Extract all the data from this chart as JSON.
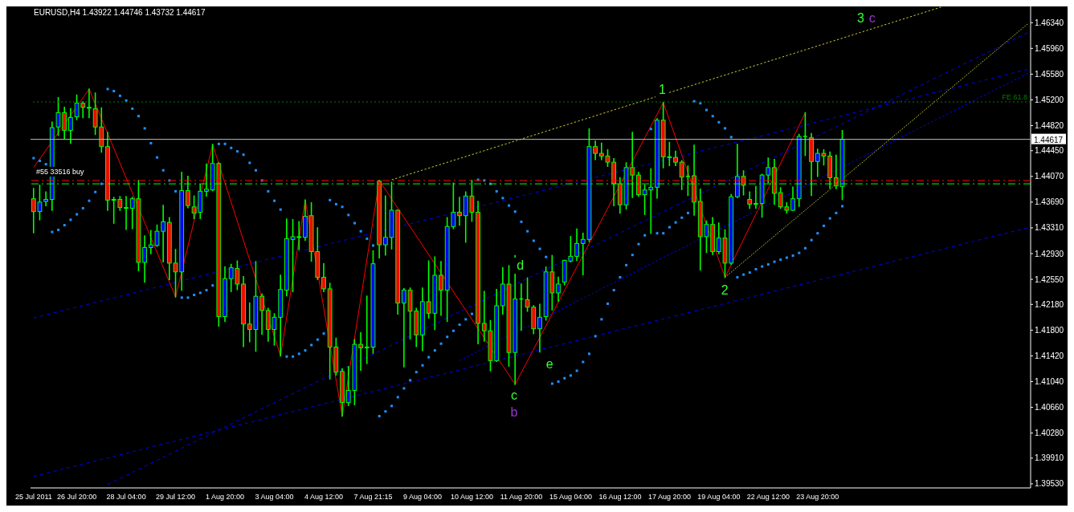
{
  "chart_data": {
    "type": "candlestick",
    "title": "EURUSD,H4 1.43922 1.44746 1.43732 1.44617",
    "categories": [
      "25 Jul 2011",
      null,
      null,
      null,
      null,
      null,
      null,
      "26 Jul 20:00",
      null,
      null,
      null,
      null,
      null,
      null,
      null,
      "28 Jul 04:00",
      null,
      null,
      null,
      null,
      null,
      null,
      null,
      "29 Jul 12:00",
      null,
      null,
      null,
      null,
      null,
      null,
      null,
      "1 Aug 20:00",
      null,
      null,
      null,
      null,
      null,
      null,
      null,
      "3 Aug 04:00",
      null,
      null,
      null,
      null,
      null,
      null,
      null,
      "4 Aug 12:00",
      null,
      null,
      null,
      null,
      null,
      null,
      null,
      "7 Aug 21:15",
      null,
      null,
      null,
      null,
      null,
      null,
      null,
      "9 Aug 04:00",
      null,
      null,
      null,
      null,
      null,
      null,
      null,
      "10 Aug 12:00",
      null,
      null,
      null,
      null,
      null,
      null,
      null,
      "11 Aug 20:00",
      null,
      null,
      null,
      null,
      null,
      null,
      null,
      "15 Aug 04:00",
      null,
      null,
      null,
      null,
      null,
      null,
      null,
      "16 Aug 12:00",
      null,
      null,
      null,
      null,
      null,
      null,
      null,
      "17 Aug 20:00",
      null,
      null,
      null,
      null,
      null,
      null,
      null,
      "19 Aug 04:00",
      null,
      null,
      null,
      null,
      null,
      null,
      null,
      "22 Aug 12:00",
      null,
      null,
      null,
      null,
      null,
      null,
      null,
      "23 Aug 20:00",
      null,
      null,
      null,
      null,
      null,
      null,
      null,
      null,
      null,
      null,
      null,
      null,
      null,
      null,
      null,
      null,
      null,
      null,
      null,
      null,
      null,
      null,
      null,
      null,
      null,
      null,
      null,
      null,
      null,
      null,
      null,
      null,
      null,
      null
    ],
    "ohlc": [
      [
        1.4374,
        1.4389,
        1.4324,
        1.4355
      ],
      [
        1.4355,
        1.4394,
        1.4343,
        1.4369
      ],
      [
        1.437,
        1.4384,
        1.4364,
        1.4373
      ],
      [
        1.4373,
        1.4487,
        1.4357,
        1.4479
      ],
      [
        1.448,
        1.4523,
        1.4468,
        1.4501
      ],
      [
        1.4501,
        1.4509,
        1.4463,
        1.4475
      ],
      [
        1.4475,
        1.4507,
        1.4456,
        1.4494
      ],
      [
        1.4495,
        1.4527,
        1.4491,
        1.4515
      ],
      [
        1.4515,
        1.4517,
        1.4494,
        1.4509
      ],
      [
        1.4509,
        1.4536,
        1.4494,
        1.4508
      ],
      [
        1.4507,
        1.453,
        1.4469,
        1.448
      ],
      [
        1.448,
        1.4508,
        1.4443,
        1.4451
      ],
      [
        1.4451,
        1.4472,
        1.4357,
        1.4372
      ],
      [
        1.4373,
        1.4376,
        1.4338,
        1.4372
      ],
      [
        1.4373,
        1.4377,
        1.4357,
        1.4361
      ],
      [
        1.4361,
        1.4377,
        1.4329,
        1.436
      ],
      [
        1.436,
        1.4376,
        1.433,
        1.4374
      ],
      [
        1.4374,
        1.4401,
        1.4268,
        1.428
      ],
      [
        1.428,
        1.4319,
        1.4251,
        1.4302
      ],
      [
        1.4302,
        1.4327,
        1.4293,
        1.4306
      ],
      [
        1.4305,
        1.4335,
        1.4304,
        1.4326
      ],
      [
        1.4326,
        1.4364,
        1.4281,
        1.434
      ],
      [
        1.4339,
        1.4346,
        1.4255,
        1.4279
      ],
      [
        1.4279,
        1.4299,
        1.4229,
        1.4266
      ],
      [
        1.4266,
        1.4413,
        1.4239,
        1.4386
      ],
      [
        1.4386,
        1.4407,
        1.4361,
        1.4364
      ],
      [
        1.4362,
        1.4378,
        1.4345,
        1.4353
      ],
      [
        1.4354,
        1.4395,
        1.4345,
        1.4385
      ],
      [
        1.4385,
        1.4425,
        1.4378,
        1.4388
      ],
      [
        1.4387,
        1.4454,
        1.4386,
        1.4426
      ],
      [
        1.4426,
        1.4427,
        1.4186,
        1.42
      ],
      [
        1.42,
        1.4273,
        1.4193,
        1.4256
      ],
      [
        1.4256,
        1.4277,
        1.4237,
        1.4272
      ],
      [
        1.4271,
        1.4282,
        1.424,
        1.4248
      ],
      [
        1.4248,
        1.4259,
        1.4156,
        1.4189
      ],
      [
        1.4189,
        1.422,
        1.4163,
        1.4181
      ],
      [
        1.4181,
        1.4281,
        1.4149,
        1.423
      ],
      [
        1.423,
        1.4233,
        1.4174,
        1.4209
      ],
      [
        1.4209,
        1.4212,
        1.4164,
        1.4181
      ],
      [
        1.4181,
        1.4204,
        1.4158,
        1.4199
      ],
      [
        1.4199,
        1.4261,
        1.4142,
        1.424
      ],
      [
        1.4239,
        1.4344,
        1.4231,
        1.4315
      ],
      [
        1.4314,
        1.4343,
        1.4237,
        1.4318
      ],
      [
        1.4318,
        1.434,
        1.4299,
        1.4317
      ],
      [
        1.4317,
        1.4372,
        1.4313,
        1.4348
      ],
      [
        1.4349,
        1.4368,
        1.4282,
        1.4296
      ],
      [
        1.4296,
        1.4331,
        1.4255,
        1.4258
      ],
      [
        1.4258,
        1.4278,
        1.4237,
        1.4241
      ],
      [
        1.4241,
        1.4249,
        1.4108,
        1.4155
      ],
      [
        1.4155,
        1.4168,
        1.4114,
        1.4118
      ],
      [
        1.4119,
        1.4123,
        1.4053,
        1.4073
      ],
      [
        1.4073,
        1.4126,
        1.4069,
        1.4091
      ],
      [
        1.4091,
        1.4166,
        1.407,
        1.4159
      ],
      [
        1.4159,
        1.4176,
        1.4121,
        1.4154
      ],
      [
        1.4155,
        1.423,
        1.4131,
        1.4154
      ],
      [
        1.4155,
        1.4297,
        1.4146,
        1.4278
      ],
      [
        1.44,
        1.4401,
        1.4287,
        1.4306
      ],
      [
        1.4306,
        1.4378,
        1.4291,
        1.4317
      ],
      [
        1.4317,
        1.4398,
        1.43,
        1.4357
      ],
      [
        1.4357,
        1.4357,
        1.4204,
        1.422
      ],
      [
        1.422,
        1.4241,
        1.4126,
        1.4239
      ],
      [
        1.4239,
        1.4242,
        1.4167,
        1.4208
      ],
      [
        1.4208,
        1.4212,
        1.4156,
        1.4173
      ],
      [
        1.4173,
        1.4242,
        1.415,
        1.4222
      ],
      [
        1.4222,
        1.4282,
        1.4198,
        1.4205
      ],
      [
        1.4205,
        1.4288,
        1.4181,
        1.4261
      ],
      [
        1.4261,
        1.4281,
        1.4202,
        1.4239
      ],
      [
        1.4239,
        1.4346,
        1.4193,
        1.4333
      ],
      [
        1.4333,
        1.4397,
        1.433,
        1.4354
      ],
      [
        1.4354,
        1.4376,
        1.4335,
        1.4349
      ],
      [
        1.4349,
        1.4384,
        1.431,
        1.4378
      ],
      [
        1.4378,
        1.4401,
        1.4341,
        1.4354
      ],
      [
        1.4354,
        1.437,
        1.416,
        1.419
      ],
      [
        1.419,
        1.4237,
        1.4164,
        1.4179
      ],
      [
        1.4179,
        1.4194,
        1.412,
        1.4135
      ],
      [
        1.4135,
        1.424,
        1.4134,
        1.4216
      ],
      [
        1.4216,
        1.4272,
        1.4204,
        1.4248
      ],
      [
        1.4248,
        1.4275,
        1.4127,
        1.4147
      ],
      [
        1.4147,
        1.429,
        1.41,
        1.4226
      ],
      [
        1.4226,
        1.4248,
        1.418,
        1.4226
      ],
      [
        1.4225,
        1.4257,
        1.4208,
        1.4214
      ],
      [
        1.4214,
        1.4216,
        1.4175,
        1.4182
      ],
      [
        1.4182,
        1.4218,
        1.4148,
        1.4199
      ],
      [
        1.42,
        1.4273,
        1.4195,
        1.4266
      ],
      [
        1.4266,
        1.429,
        1.421,
        1.4235
      ],
      [
        1.4235,
        1.4258,
        1.4223,
        1.4248
      ],
      [
        1.4251,
        1.4283,
        1.4247,
        1.4283
      ],
      [
        1.4282,
        1.4318,
        1.4281,
        1.4289
      ],
      [
        1.4289,
        1.4329,
        1.4283,
        1.4308
      ],
      [
        1.4308,
        1.4323,
        1.4262,
        1.4314
      ],
      [
        1.4314,
        1.4477,
        1.4311,
        1.4451
      ],
      [
        1.4451,
        1.4459,
        1.4432,
        1.4441
      ],
      [
        1.4441,
        1.4456,
        1.4432,
        1.4437
      ],
      [
        1.4437,
        1.4446,
        1.4422,
        1.4428
      ],
      [
        1.4428,
        1.4433,
        1.4364,
        1.4396
      ],
      [
        1.4396,
        1.4405,
        1.4353,
        1.4365
      ],
      [
        1.4365,
        1.4427,
        1.4359,
        1.442
      ],
      [
        1.442,
        1.4472,
        1.4376,
        1.4409
      ],
      [
        1.4409,
        1.4413,
        1.4378,
        1.438
      ],
      [
        1.438,
        1.4394,
        1.4351,
        1.4387
      ],
      [
        1.4387,
        1.4418,
        1.4323,
        1.4391
      ],
      [
        1.4391,
        1.4492,
        1.4375,
        1.449
      ],
      [
        1.449,
        1.4516,
        1.442,
        1.4436
      ],
      [
        1.4436,
        1.4457,
        1.4423,
        1.4435
      ],
      [
        1.4435,
        1.4444,
        1.4423,
        1.4428
      ],
      [
        1.4428,
        1.443,
        1.4388,
        1.4406
      ],
      [
        1.4407,
        1.4422,
        1.4379,
        1.4407
      ],
      [
        1.4408,
        1.4453,
        1.435,
        1.4369
      ],
      [
        1.437,
        1.4388,
        1.4269,
        1.4318
      ],
      [
        1.4318,
        1.4341,
        1.4295,
        1.4336
      ],
      [
        1.4336,
        1.4346,
        1.4292,
        1.4296
      ],
      [
        1.4296,
        1.4338,
        1.4293,
        1.4316
      ],
      [
        1.4316,
        1.4328,
        1.4258,
        1.4279
      ],
      [
        1.4279,
        1.438,
        1.4277,
        1.4377
      ],
      [
        1.4377,
        1.4454,
        1.4376,
        1.4407
      ],
      [
        1.4407,
        1.4415,
        1.438,
        1.4394
      ],
      [
        1.4373,
        1.4384,
        1.436,
        1.4366
      ],
      [
        1.4367,
        1.4392,
        1.436,
        1.4366
      ],
      [
        1.4367,
        1.441,
        1.4347,
        1.4409
      ],
      [
        1.4409,
        1.4434,
        1.4398,
        1.442
      ],
      [
        1.442,
        1.4432,
        1.4366,
        1.4382
      ],
      [
        1.4383,
        1.439,
        1.436,
        1.4362
      ],
      [
        1.4362,
        1.4368,
        1.4353,
        1.4357
      ],
      [
        1.4357,
        1.4391,
        1.4357,
        1.4374
      ],
      [
        1.4374,
        1.4469,
        1.4363,
        1.4466
      ],
      [
        1.4466,
        1.4501,
        1.4438,
        1.4466
      ],
      [
        1.4464,
        1.447,
        1.4379,
        1.4429
      ],
      [
        1.4429,
        1.4447,
        1.4407,
        1.4441
      ],
      [
        1.4441,
        1.4446,
        1.4424,
        1.4437
      ],
      [
        1.4437,
        1.4443,
        1.439,
        1.4405
      ],
      [
        1.4405,
        1.4438,
        1.4389,
        1.4393
      ],
      [
        1.43922,
        1.44746,
        1.43732,
        1.44617
      ],
      null,
      null,
      null,
      null,
      null,
      null,
      null,
      null,
      null,
      null,
      null,
      null,
      null,
      null,
      null,
      null,
      null,
      null,
      null,
      null,
      null,
      null,
      null,
      null,
      null,
      null,
      null,
      null,
      null,
      null
    ],
    "ylim": [
      1.3947,
      1.4658
    ],
    "yticks": [
      {
        "value": 1.4634,
        "label": "1.46340"
      },
      {
        "value": 1.4596,
        "label": "1.45960"
      },
      {
        "value": 1.4558,
        "label": "1.45580"
      },
      {
        "value": 1.452,
        "label": "1.45200"
      },
      {
        "value": 1.4482,
        "label": "1.44820"
      },
      {
        "value": 1.4445,
        "label": "1.44450"
      },
      {
        "value": 1.4407,
        "label": "1.44070"
      },
      {
        "value": 1.4369,
        "label": "1.43690"
      },
      {
        "value": 1.4331,
        "label": "1.43310"
      },
      {
        "value": 1.4293,
        "label": "1.42930"
      },
      {
        "value": 1.4255,
        "label": "1.42550"
      },
      {
        "value": 1.4218,
        "label": "1.42180"
      },
      {
        "value": 1.418,
        "label": "1.41800"
      },
      {
        "value": 1.4142,
        "label": "1.41420"
      },
      {
        "value": 1.4104,
        "label": "1.41040"
      },
      {
        "value": 1.4066,
        "label": "1.40660"
      },
      {
        "value": 1.4028,
        "label": "1.40280"
      },
      {
        "value": 1.3991,
        "label": "1.39910"
      },
      {
        "value": 1.3953,
        "label": "1.39530"
      }
    ],
    "series": [
      {
        "type": "line",
        "color": "#ff0000",
        "line_style": "solid",
        "values": [
          1.442,
          null,
          null,
          null,
          null,
          null,
          null,
          null,
          null,
          1.4536,
          null,
          null,
          null,
          null,
          null,
          null,
          null,
          null,
          null,
          null,
          null,
          null,
          null,
          1.4229,
          null,
          null,
          null,
          null,
          null,
          1.4454,
          null,
          null,
          null,
          null,
          null,
          null,
          null,
          null,
          null,
          null,
          1.4142,
          null,
          null,
          null,
          1.4372,
          null,
          null,
          null,
          null,
          null,
          1.4053,
          null,
          null,
          null,
          null,
          null,
          1.4401,
          null,
          null,
          null,
          null,
          null,
          null,
          null,
          null,
          null,
          null,
          null,
          null,
          null,
          null,
          null,
          null,
          null,
          null,
          null,
          null,
          null,
          1.41,
          null,
          null,
          null,
          null,
          null,
          null,
          null,
          null,
          null,
          null,
          null,
          null,
          null,
          null,
          null,
          null,
          null,
          null,
          null,
          null,
          null,
          null,
          null,
          1.4516,
          null,
          null,
          null,
          null,
          null,
          null,
          null,
          null,
          null,
          1.4258,
          null,
          null,
          null,
          null,
          null,
          null,
          null,
          null,
          null,
          null,
          null,
          null,
          1.4501,
          null,
          null,
          null,
          null,
          null,
          null,
          null,
          null,
          null,
          null,
          null,
          null,
          null,
          null,
          null,
          null,
          null,
          null,
          null,
          null,
          null,
          null,
          null,
          null,
          null,
          null,
          null,
          null,
          null,
          null,
          null,
          null,
          null,
          null,
          null,
          null
        ]
      },
      {
        "type": "scatter",
        "color": "#1e90ff",
        "marker": "square",
        "values": [
          1.4434,
          1.443,
          1.4425,
          1.4325,
          1.4328,
          1.4335,
          1.4343,
          1.4351,
          1.436,
          1.4371,
          1.4384,
          1.4396,
          1.4536,
          1.4533,
          1.4526,
          1.4519,
          1.4507,
          1.4496,
          1.4478,
          1.4456,
          1.4435,
          1.4416,
          1.4401,
          1.4385,
          1.4228,
          1.4228,
          1.4232,
          1.4235,
          1.4239,
          1.4246,
          1.4455,
          1.4455,
          1.4449,
          1.4444,
          1.4439,
          1.4427,
          1.4416,
          1.4401,
          1.4385,
          1.4371,
          1.4358,
          1.4141,
          1.4141,
          1.4145,
          1.415,
          1.4158,
          1.4166,
          1.4175,
          1.4372,
          1.4366,
          1.4362,
          1.435,
          1.4338,
          1.4326,
          1.4315,
          1.4305,
          1.4053,
          1.406,
          1.4068,
          1.4081,
          1.4094,
          1.4106,
          1.4118,
          1.4128,
          1.414,
          1.415,
          1.416,
          1.417,
          1.4179,
          1.4188,
          1.4196,
          1.4204,
          1.4402,
          1.4401,
          1.4396,
          1.4385,
          1.4375,
          1.4364,
          1.4355,
          1.434,
          1.4326,
          1.4312,
          1.43,
          1.4288,
          1.4101,
          1.4104,
          1.4109,
          1.4113,
          1.412,
          1.4133,
          1.4145,
          1.4171,
          1.4196,
          1.4219,
          1.4239,
          1.4258,
          1.4276,
          1.4291,
          1.4307,
          1.432,
          1.4477,
          1.4323,
          1.4323,
          1.4332,
          1.4339,
          1.4346,
          1.4353,
          1.4518,
          1.4515,
          1.4505,
          1.4496,
          1.4487,
          1.4478,
          1.4465,
          1.4258,
          1.4262,
          1.4265,
          1.427,
          1.4274,
          1.4277,
          1.4281,
          1.4284,
          1.4287,
          1.429,
          1.4294,
          1.4301,
          1.4313,
          1.4323,
          1.4334,
          1.4345,
          1.4353,
          1.4363,
          null,
          null,
          null,
          null,
          null,
          null,
          null,
          null,
          null,
          null,
          null,
          null,
          null,
          null,
          null,
          null,
          null,
          null,
          null,
          null,
          null,
          null,
          null,
          null,
          null,
          null,
          null,
          null,
          null,
          null
        ]
      },
      {
        "type": "line",
        "color": "#0000ff",
        "line_style": "dotted",
        "values": [
          1.4198,
          null,
          null,
          null,
          null,
          null,
          null,
          null,
          null,
          null,
          null,
          null,
          null,
          null,
          null,
          null,
          null,
          null,
          null,
          null,
          null,
          null,
          null,
          null,
          null,
          null,
          null,
          null,
          null,
          null,
          null,
          null,
          null,
          null,
          null,
          null,
          null,
          null,
          null,
          null,
          null,
          null,
          null,
          null,
          null,
          null,
          null,
          null,
          null,
          null,
          null,
          null,
          null,
          null,
          null,
          null,
          null,
          null,
          null,
          null,
          null,
          null,
          null,
          null,
          null,
          null,
          null,
          null,
          null,
          null,
          null,
          null,
          null,
          null,
          null,
          null,
          null,
          null,
          null,
          null,
          null,
          null,
          null,
          null,
          null,
          null,
          null,
          null,
          null,
          null,
          null,
          null,
          null,
          null,
          null,
          null,
          null,
          null,
          null,
          null,
          null,
          null,
          null,
          null,
          null,
          null,
          null,
          null,
          null,
          null,
          null,
          null,
          null,
          null,
          null,
          null,
          null,
          null,
          null,
          null,
          null,
          null,
          null,
          null,
          null,
          null,
          null,
          null,
          null,
          null,
          null,
          null,
          null,
          null,
          null,
          null,
          null,
          null,
          null,
          null,
          null,
          null,
          null,
          null,
          null,
          null,
          null,
          null,
          null,
          null,
          null,
          null,
          null,
          null,
          null,
          null,
          null,
          null,
          null,
          null,
          null,
          1.4565
        ]
      },
      {
        "type": "line",
        "color": "#0000ff",
        "line_style": "dotted",
        "values": [
          1.3964,
          null,
          null,
          null,
          null,
          null,
          null,
          null,
          null,
          null,
          null,
          null,
          null,
          null,
          null,
          null,
          null,
          null,
          null,
          null,
          null,
          null,
          null,
          null,
          null,
          null,
          null,
          null,
          null,
          null,
          null,
          null,
          null,
          null,
          null,
          null,
          null,
          null,
          null,
          null,
          null,
          null,
          null,
          null,
          null,
          null,
          null,
          null,
          null,
          null,
          null,
          null,
          null,
          null,
          null,
          null,
          null,
          null,
          null,
          null,
          null,
          null,
          null,
          null,
          null,
          null,
          null,
          null,
          null,
          null,
          null,
          null,
          null,
          null,
          null,
          null,
          null,
          null,
          null,
          null,
          null,
          null,
          null,
          null,
          null,
          null,
          null,
          null,
          null,
          null,
          null,
          null,
          null,
          null,
          null,
          null,
          null,
          null,
          null,
          null,
          null,
          null,
          null,
          null,
          null,
          null,
          null,
          null,
          null,
          null,
          null,
          null,
          null,
          null,
          null,
          null,
          null,
          null,
          null,
          null,
          null,
          null,
          null,
          null,
          null,
          null,
          null,
          null,
          null,
          null,
          null,
          null,
          null,
          null,
          null,
          null,
          null,
          null,
          null,
          null,
          null,
          null,
          null,
          null,
          null,
          null,
          null,
          null,
          null,
          null,
          null,
          null,
          null,
          null,
          null,
          null,
          null,
          null,
          null,
          null,
          null,
          1.4331
        ]
      },
      {
        "type": "line",
        "color": "#0000ff",
        "line_style": "dotted",
        "values": [
          null,
          null,
          null,
          null,
          null,
          null,
          null,
          null,
          null,
          null,
          null,
          null,
          null,
          null,
          null,
          null,
          null,
          null,
          null,
          null,
          null,
          null,
          null,
          null,
          null,
          null,
          null,
          null,
          null,
          null,
          null,
          null,
          null,
          null,
          null,
          null,
          null,
          null,
          null,
          null,
          null,
          null,
          null,
          null,
          null,
          null,
          null,
          null,
          null,
          null,
          null,
          null,
          null,
          null,
          null,
          null,
          null,
          null,
          null,
          null,
          null,
          null,
          null,
          null,
          null,
          null,
          null,
          null,
          null,
          1.4135,
          null,
          null,
          null,
          null,
          null,
          null,
          null,
          null,
          null,
          null,
          null,
          null,
          null,
          null,
          null,
          null,
          null,
          null,
          null,
          null,
          null,
          null,
          null,
          null,
          null,
          null,
          null,
          null,
          null,
          null,
          null,
          null,
          null,
          null,
          null,
          null,
          null,
          null,
          null,
          null,
          null,
          null,
          null,
          null,
          null,
          null,
          null,
          null,
          null,
          null,
          null,
          null,
          null,
          null,
          null,
          null,
          null,
          null,
          null,
          null,
          null,
          null,
          null,
          null,
          null,
          null,
          null,
          null,
          null,
          null,
          null,
          null,
          null,
          null,
          null,
          null,
          null,
          null,
          null,
          null,
          null,
          null,
          null,
          null,
          null,
          null,
          null,
          null,
          null,
          null,
          null,
          1.4559
        ]
      },
      {
        "type": "line",
        "color": "#0000ff",
        "line_style": "dotted",
        "values": [
          null,
          null,
          null,
          null,
          null,
          null,
          null,
          null,
          null,
          null,
          null,
          null,
          1.3952,
          null,
          null,
          null,
          null,
          null,
          null,
          null,
          null,
          null,
          null,
          null,
          null,
          null,
          null,
          null,
          null,
          null,
          null,
          null,
          null,
          null,
          null,
          null,
          null,
          null,
          null,
          null,
          null,
          null,
          null,
          null,
          null,
          null,
          null,
          null,
          null,
          null,
          null,
          null,
          null,
          null,
          null,
          null,
          null,
          null,
          null,
          null,
          null,
          null,
          null,
          null,
          null,
          null,
          null,
          null,
          null,
          null,
          null,
          null,
          null,
          null,
          null,
          null,
          null,
          null,
          null,
          null,
          null,
          null,
          null,
          null,
          null,
          null,
          null,
          null,
          null,
          null,
          null,
          null,
          null,
          null,
          null,
          null,
          null,
          null,
          null,
          null,
          null,
          null,
          null,
          null,
          null,
          null,
          null,
          null,
          null,
          null,
          null,
          null,
          null,
          null,
          null,
          null,
          null,
          null,
          null,
          null,
          null,
          null,
          null,
          null,
          null,
          null,
          null,
          null,
          null,
          null,
          null,
          null,
          null,
          null,
          null,
          null,
          null,
          null,
          null,
          null,
          null,
          null,
          null,
          null,
          null,
          null,
          null,
          null,
          null,
          null,
          null,
          null,
          null,
          null,
          null,
          null,
          null,
          null,
          null,
          null,
          null,
          1.4619
        ]
      },
      {
        "type": "line",
        "color": "#cccc33",
        "line_style": "dotted",
        "values": [
          null,
          null,
          null,
          null,
          null,
          null,
          null,
          null,
          null,
          null,
          null,
          null,
          null,
          null,
          null,
          null,
          null,
          null,
          null,
          null,
          null,
          null,
          null,
          null,
          null,
          null,
          null,
          null,
          null,
          null,
          null,
          null,
          null,
          null,
          null,
          null,
          null,
          null,
          null,
          null,
          null,
          null,
          null,
          null,
          null,
          null,
          null,
          null,
          null,
          null,
          null,
          null,
          null,
          null,
          null,
          null,
          null,
          null,
          1.4402,
          null,
          null,
          null,
          null,
          null,
          null,
          null,
          null,
          null,
          null,
          null,
          null,
          null,
          null,
          null,
          null,
          null,
          null,
          null,
          null,
          null,
          null,
          null,
          null,
          null,
          null,
          null,
          null,
          null,
          null,
          null,
          null,
          null,
          null,
          null,
          null,
          null,
          null,
          null,
          null,
          null,
          null,
          null,
          null,
          null,
          null,
          null,
          null,
          null,
          null,
          null,
          null,
          null,
          null,
          null,
          null,
          null,
          null,
          null,
          null,
          null,
          null,
          null,
          null,
          null,
          null,
          null,
          null,
          null,
          null,
          null,
          null,
          null,
          null,
          null,
          null,
          null,
          null,
          null,
          null,
          null,
          null,
          null,
          null,
          null,
          null,
          null,
          null,
          1.4657,
          null,
          null,
          null,
          null,
          null,
          null,
          null,
          null,
          null,
          null,
          null,
          null,
          null,
          null
        ]
      },
      {
        "type": "line",
        "color": "#cccc33",
        "line_style": "dotted",
        "values": [
          null,
          null,
          null,
          null,
          null,
          null,
          null,
          null,
          null,
          null,
          null,
          null,
          null,
          null,
          null,
          null,
          null,
          null,
          null,
          null,
          null,
          null,
          null,
          null,
          null,
          null,
          null,
          null,
          null,
          null,
          null,
          null,
          null,
          null,
          null,
          null,
          null,
          null,
          null,
          null,
          null,
          null,
          null,
          null,
          null,
          null,
          null,
          null,
          null,
          null,
          null,
          null,
          null,
          null,
          null,
          null,
          null,
          null,
          null,
          null,
          null,
          null,
          null,
          null,
          null,
          null,
          null,
          null,
          null,
          null,
          null,
          null,
          null,
          null,
          null,
          null,
          null,
          null,
          null,
          null,
          null,
          null,
          null,
          null,
          null,
          null,
          null,
          null,
          null,
          null,
          null,
          null,
          null,
          null,
          null,
          null,
          null,
          null,
          null,
          null,
          null,
          null,
          null,
          null,
          null,
          null,
          null,
          null,
          null,
          null,
          null,
          null,
          1.4258,
          null,
          null,
          null,
          null,
          null,
          null,
          null,
          null,
          null,
          null,
          null,
          null,
          null,
          null,
          null,
          null,
          null,
          null,
          null,
          null,
          null,
          null,
          null,
          null,
          null,
          null,
          null,
          null,
          null,
          null,
          null,
          null,
          null,
          null,
          null,
          null,
          null,
          null,
          null,
          null,
          null,
          null,
          null,
          null,
          null,
          null,
          null,
          null,
          1.4632
        ]
      }
    ],
    "ref_lines": [
      {
        "axis": "y",
        "value": 1.44617,
        "label": "1.44617",
        "color": "#c0c0c0",
        "line_style": "solid"
      },
      {
        "axis": "y",
        "value": 1.4401,
        "label": "#55 33516 buy",
        "color": "#ff0000",
        "line_style": "dashed"
      },
      {
        "axis": "y",
        "value": 1.4396,
        "label": null,
        "color": "#00ff00",
        "line_style": "dashed"
      },
      {
        "axis": "y",
        "value": 1.4517,
        "label": "FE 61.8",
        "color": "#008000",
        "line_style": "dotted"
      }
    ],
    "annotations": [
      "1",
      "2",
      "3",
      "c",
      "d",
      "e",
      "c",
      "b"
    ]
  }
}
